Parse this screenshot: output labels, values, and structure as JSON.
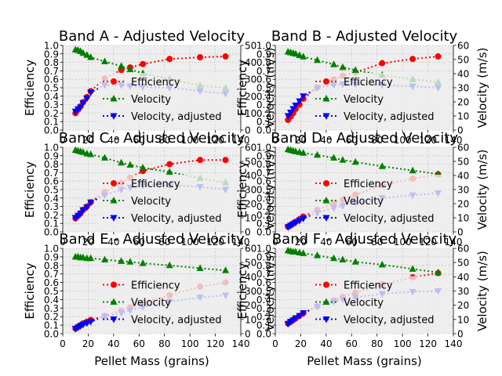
{
  "figure": {
    "x_axis_label": "Pellet Mass (grains)",
    "left_axis_label": "Efficiency",
    "right_axis_label": "Velocity (m/s)",
    "legend": [
      "Efficiency",
      "Velocity",
      "Velocity, adjusted"
    ]
  },
  "colors": {
    "efficiency": "#ff0000",
    "velocity": "#008000",
    "adjusted": "#0000ff",
    "plot_bg": "#eeeeee",
    "grid": "#c8c8c8"
  },
  "chart_data": [
    {
      "type": "line",
      "title": "Band A - Adjusted Velocity",
      "x": [
        10,
        12,
        14,
        16,
        19,
        22,
        33,
        46,
        53,
        63,
        84,
        108,
        128
      ],
      "xlim": [
        0,
        140
      ],
      "x_ticks": [
        0,
        20,
        40,
        60,
        80,
        100,
        120,
        140
      ],
      "ylim_left": [
        0,
        1.0
      ],
      "left_ticks": [
        0.0,
        0.1,
        0.2,
        0.3,
        0.4,
        0.5,
        0.6,
        0.7,
        0.8,
        0.9,
        1.0
      ],
      "ylim_right": [
        0,
        50
      ],
      "right_ticks": [
        0,
        10,
        20,
        30,
        40,
        50
      ],
      "series": [
        {
          "name": "Efficiency",
          "axis": "left",
          "values": [
            0.2,
            0.24,
            0.28,
            0.33,
            0.39,
            0.46,
            0.61,
            0.71,
            0.74,
            0.78,
            0.84,
            0.86,
            0.87
          ]
        },
        {
          "name": "Velocity",
          "axis": "right",
          "values": [
            47.5,
            47.2,
            46.5,
            45.5,
            44.3,
            43.0,
            40.5,
            37.8,
            35.8,
            33.5,
            30.2,
            26.3,
            24.8
          ]
        },
        {
          "name": "Velocity, adjusted",
          "axis": "right",
          "values": [
            11.0,
            12.4,
            13.5,
            16.0,
            18.8,
            22.3,
            26.5,
            26.5,
            26.0,
            25.5,
            25.0,
            23.0,
            21.5
          ]
        }
      ]
    },
    {
      "type": "line",
      "title": "Band B - Adjusted Velocity",
      "x": [
        10,
        12,
        14,
        16,
        19,
        22,
        33,
        46,
        53,
        63,
        84,
        108,
        128
      ],
      "xlim": [
        0,
        140
      ],
      "x_ticks": [
        0,
        20,
        40,
        60,
        80,
        100,
        120,
        140
      ],
      "ylim_left": [
        0,
        1.0
      ],
      "left_ticks": [
        0.0,
        0.1,
        0.2,
        0.3,
        0.4,
        0.5,
        0.6,
        0.7,
        0.8,
        0.9,
        1.0
      ],
      "ylim_right": [
        0,
        60
      ],
      "right_ticks": [
        0,
        10,
        20,
        30,
        40,
        50,
        60
      ],
      "series": [
        {
          "name": "Efficiency",
          "axis": "left",
          "values": [
            0.12,
            0.16,
            0.2,
            0.25,
            0.3,
            0.37,
            0.5,
            0.6,
            0.64,
            0.68,
            0.79,
            0.84,
            0.87
          ]
        },
        {
          "name": "Velocity",
          "axis": "right",
          "values": [
            55.5,
            55.0,
            54.5,
            54.0,
            53.0,
            52.0,
            49.5,
            46.5,
            44.5,
            42.5,
            39.0,
            36.0,
            34.0
          ]
        },
        {
          "name": "Velocity, adjusted",
          "axis": "right",
          "values": [
            10.0,
            12.5,
            15.0,
            17.5,
            20.5,
            24.0,
            30.0,
            32.0,
            32.5,
            32.5,
            32.0,
            31.0,
            30.0
          ]
        }
      ]
    },
    {
      "type": "line",
      "title": "Band C - Adjusted Velocity",
      "x": [
        10,
        12,
        14,
        16,
        19,
        22,
        33,
        46,
        53,
        63,
        84,
        108,
        128
      ],
      "xlim": [
        0,
        140
      ],
      "x_ticks": [
        0,
        20,
        40,
        60,
        80,
        100,
        120,
        140
      ],
      "ylim_left": [
        0,
        1.0
      ],
      "left_ticks": [
        0.0,
        0.1,
        0.2,
        0.3,
        0.4,
        0.5,
        0.6,
        0.7,
        0.8,
        0.9,
        1.0
      ],
      "ylim_right": [
        0,
        60
      ],
      "right_ticks": [
        0,
        10,
        20,
        30,
        40,
        50,
        60
      ],
      "series": [
        {
          "name": "Efficiency",
          "axis": "left",
          "values": [
            0.16,
            0.19,
            0.22,
            0.26,
            0.3,
            0.35,
            0.47,
            0.58,
            0.64,
            0.72,
            0.8,
            0.85,
            0.85
          ]
        },
        {
          "name": "Velocity",
          "axis": "right",
          "values": [
            58.0,
            57.5,
            57.0,
            56.5,
            55.5,
            55.0,
            52.5,
            49.0,
            47.5,
            45.5,
            42.5,
            38.0,
            35.0
          ]
        },
        {
          "name": "Velocity, adjusted",
          "axis": "right",
          "values": [
            10.0,
            11.5,
            13.0,
            15.5,
            17.5,
            21.0,
            26.0,
            30.0,
            31.5,
            33.0,
            33.0,
            32.0,
            30.0
          ]
        }
      ]
    },
    {
      "type": "line",
      "title": "Band D - Adjusted Velocity",
      "x": [
        10,
        12,
        14,
        16,
        19,
        22,
        33,
        46,
        53,
        63,
        84,
        108,
        128
      ],
      "xlim": [
        0,
        140
      ],
      "x_ticks": [
        0,
        20,
        40,
        60,
        80,
        100,
        120,
        140
      ],
      "ylim_left": [
        0,
        1.0
      ],
      "left_ticks": [
        0.0,
        0.1,
        0.2,
        0.3,
        0.4,
        0.5,
        0.6,
        0.7,
        0.8,
        0.9,
        1.0
      ],
      "ylim_right": [
        0,
        60
      ],
      "right_ticks": [
        0,
        10,
        20,
        30,
        40,
        50,
        60
      ],
      "series": [
        {
          "name": "Efficiency",
          "axis": "left",
          "values": [
            0.06,
            0.08,
            0.1,
            0.12,
            0.15,
            0.18,
            0.26,
            0.34,
            0.38,
            0.44,
            0.55,
            0.63,
            0.68
          ]
        },
        {
          "name": "Velocity",
          "axis": "right",
          "values": [
            58.5,
            58.0,
            57.5,
            57.0,
            56.5,
            56.0,
            54.5,
            52.5,
            51.0,
            49.5,
            46.5,
            43.5,
            41.0
          ]
        },
        {
          "name": "Velocity, adjusted",
          "axis": "right",
          "values": [
            3.5,
            4.5,
            5.5,
            6.5,
            8.0,
            9.5,
            13.5,
            17.0,
            18.5,
            20.5,
            24.0,
            26.0,
            27.5
          ]
        }
      ]
    },
    {
      "type": "line",
      "title": "Band E - Adjusted Velocity",
      "x": [
        10,
        12,
        14,
        16,
        19,
        22,
        33,
        46,
        53,
        63,
        84,
        108,
        128
      ],
      "xlim": [
        0,
        140
      ],
      "x_ticks": [
        0,
        20,
        40,
        60,
        80,
        100,
        120,
        140
      ],
      "ylim_left": [
        0,
        1.0
      ],
      "left_ticks": [
        0.0,
        0.1,
        0.2,
        0.3,
        0.4,
        0.5,
        0.6,
        0.7,
        0.8,
        0.9,
        1.0
      ],
      "ylim_right": [
        0,
        60
      ],
      "right_ticks": [
        0,
        10,
        20,
        30,
        40,
        50,
        60
      ],
      "series": [
        {
          "name": "Efficiency",
          "axis": "left",
          "values": [
            0.06,
            0.08,
            0.1,
            0.12,
            0.14,
            0.16,
            0.21,
            0.27,
            0.31,
            0.36,
            0.45,
            0.55,
            0.6
          ]
        },
        {
          "name": "Velocity",
          "axis": "right",
          "values": [
            54.0,
            54.0,
            53.5,
            53.5,
            53.0,
            53.0,
            52.0,
            51.0,
            50.5,
            49.5,
            48.0,
            46.0,
            44.5
          ]
        },
        {
          "name": "Velocity, adjusted",
          "axis": "right",
          "values": [
            3.5,
            4.5,
            5.5,
            6.5,
            7.5,
            8.5,
            12.0,
            14.5,
            16.5,
            19.0,
            22.5,
            25.5,
            27.0
          ]
        }
      ]
    },
    {
      "type": "line",
      "title": "Band F - Adjusted Velocity",
      "x": [
        10,
        12,
        14,
        16,
        19,
        22,
        33,
        46,
        53,
        63,
        84,
        108,
        128
      ],
      "xlim": [
        0,
        140
      ],
      "x_ticks": [
        0,
        20,
        40,
        60,
        80,
        100,
        120,
        140
      ],
      "ylim_left": [
        0,
        1.0
      ],
      "left_ticks": [
        0.0,
        0.1,
        0.2,
        0.3,
        0.4,
        0.5,
        0.6,
        0.7,
        0.8,
        0.9,
        1.0
      ],
      "ylim_right": [
        0,
        60
      ],
      "right_ticks": [
        0,
        10,
        20,
        30,
        40,
        50,
        60
      ],
      "series": [
        {
          "name": "Efficiency",
          "axis": "left",
          "values": [
            0.12,
            0.14,
            0.16,
            0.18,
            0.21,
            0.24,
            0.32,
            0.39,
            0.43,
            0.48,
            0.58,
            0.66,
            0.71
          ]
        },
        {
          "name": "Velocity",
          "axis": "right",
          "values": [
            58.5,
            58.0,
            57.5,
            57.5,
            57.0,
            56.5,
            55.0,
            53.0,
            52.0,
            50.5,
            48.5,
            45.5,
            43.0
          ]
        },
        {
          "name": "Velocity, adjusted",
          "axis": "right",
          "values": [
            7.0,
            8.5,
            9.5,
            11.0,
            12.5,
            14.5,
            19.0,
            22.5,
            24.0,
            25.5,
            28.0,
            29.5,
            30.0
          ]
        }
      ]
    }
  ]
}
